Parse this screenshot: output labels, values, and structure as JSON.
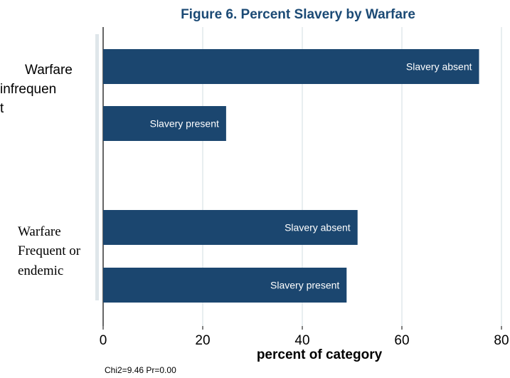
{
  "chart_data": {
    "type": "bar",
    "orientation": "horizontal",
    "title": "Figure 6. Percent Slavery by Warfare",
    "xlabel": "percent of category",
    "xlim": [
      0,
      80
    ],
    "xticks": [
      0,
      20,
      40,
      60,
      80
    ],
    "grid": true,
    "groups": [
      {
        "label_lines": [
          "Warfare",
          "infrequen",
          "t"
        ],
        "bars": [
          {
            "label": "Slavery absent",
            "value": 75.5
          },
          {
            "label": "Slavery present",
            "value": 24.7
          }
        ]
      },
      {
        "label_lines": [
          "Warfare",
          "Frequent or",
          "endemic"
        ],
        "bars": [
          {
            "label": "Slavery absent",
            "value": 51.1
          },
          {
            "label": "Slavery present",
            "value": 48.9
          }
        ]
      }
    ],
    "note": "Chi2=9.46  Pr=0.00",
    "colors": {
      "bar": "#1b466f",
      "title": "#1b4a75",
      "grid": "#e8eef0",
      "band": "#dfe6ea"
    }
  }
}
